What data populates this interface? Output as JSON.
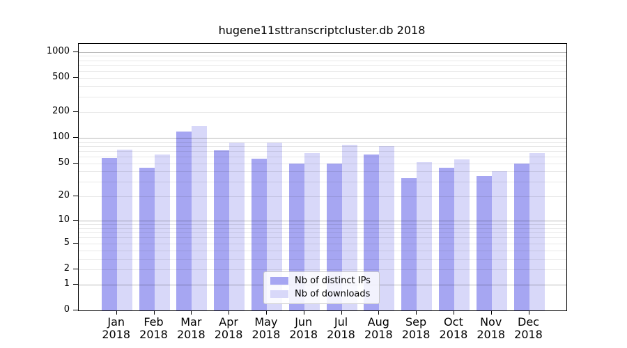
{
  "chart_data": {
    "type": "bar",
    "title": "hugene11sttranscriptcluster.db 2018",
    "categories": [
      "Jan",
      "Feb",
      "Mar",
      "Apr",
      "May",
      "Jun",
      "Jul",
      "Aug",
      "Sep",
      "Oct",
      "Nov",
      "Dec"
    ],
    "category_year": "2018",
    "series": [
      {
        "name": "Nb of distinct IPs",
        "color": "#a6a6f2",
        "values": [
          58,
          44,
          118,
          71,
          57,
          50,
          50,
          63,
          33,
          44,
          35,
          50
        ]
      },
      {
        "name": "Nb of downloads",
        "color": "#d8d8f9",
        "values": [
          72,
          64,
          138,
          88,
          88,
          66,
          82,
          80,
          52,
          56,
          40,
          66
        ]
      }
    ],
    "y_scale": "log1p",
    "y_ticks": [
      1000,
      500,
      200,
      100,
      50,
      20,
      10,
      5,
      2,
      1,
      0
    ],
    "ylim": [
      0,
      1000
    ],
    "grid": true,
    "legend_position": "bottom-center-inside",
    "axis_color": "#000000",
    "background_color": "#ffffff"
  }
}
